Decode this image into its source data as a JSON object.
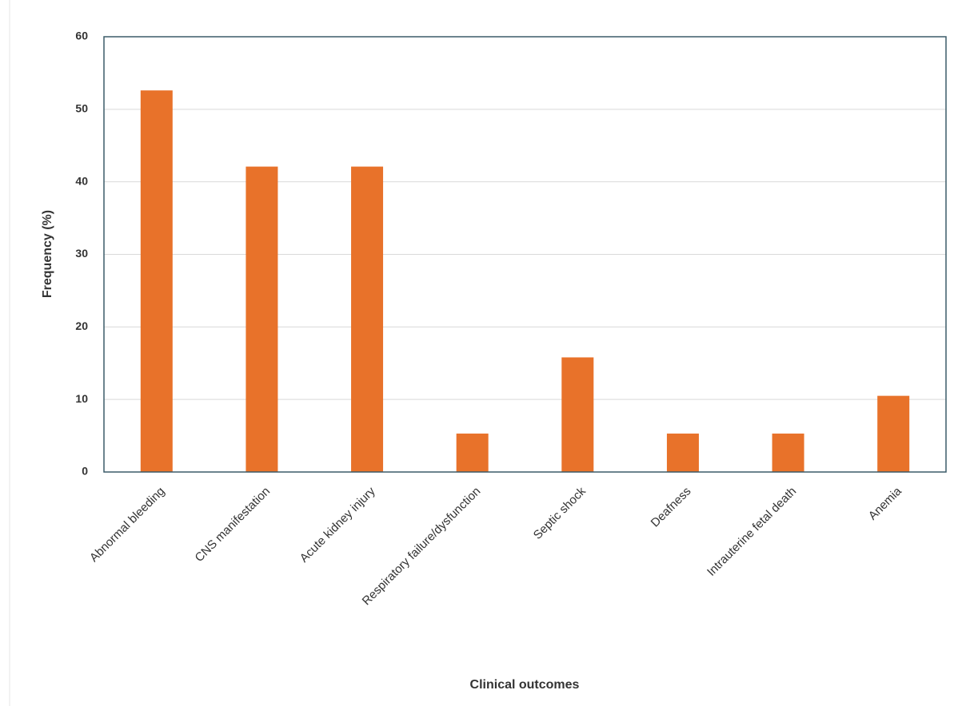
{
  "chart_data": {
    "type": "bar",
    "x_label": "Clinical outcomes",
    "y_label": "Frequency (%)",
    "categories": [
      "Abnormal  bleeding",
      "CNS manifestation",
      "Acute kidney injury",
      "Respiratory failure/dysfunction",
      "Septic shock",
      "Deafness",
      "Intrauterine fetal death",
      "Anemia"
    ],
    "values": [
      52.6,
      42.1,
      42.1,
      5.3,
      15.8,
      5.3,
      5.3,
      10.5
    ],
    "color": "#e8722a",
    "ylim": [
      0,
      60
    ],
    "yticks": [
      0,
      10,
      20,
      30,
      40,
      50,
      60
    ],
    "grid": true
  }
}
